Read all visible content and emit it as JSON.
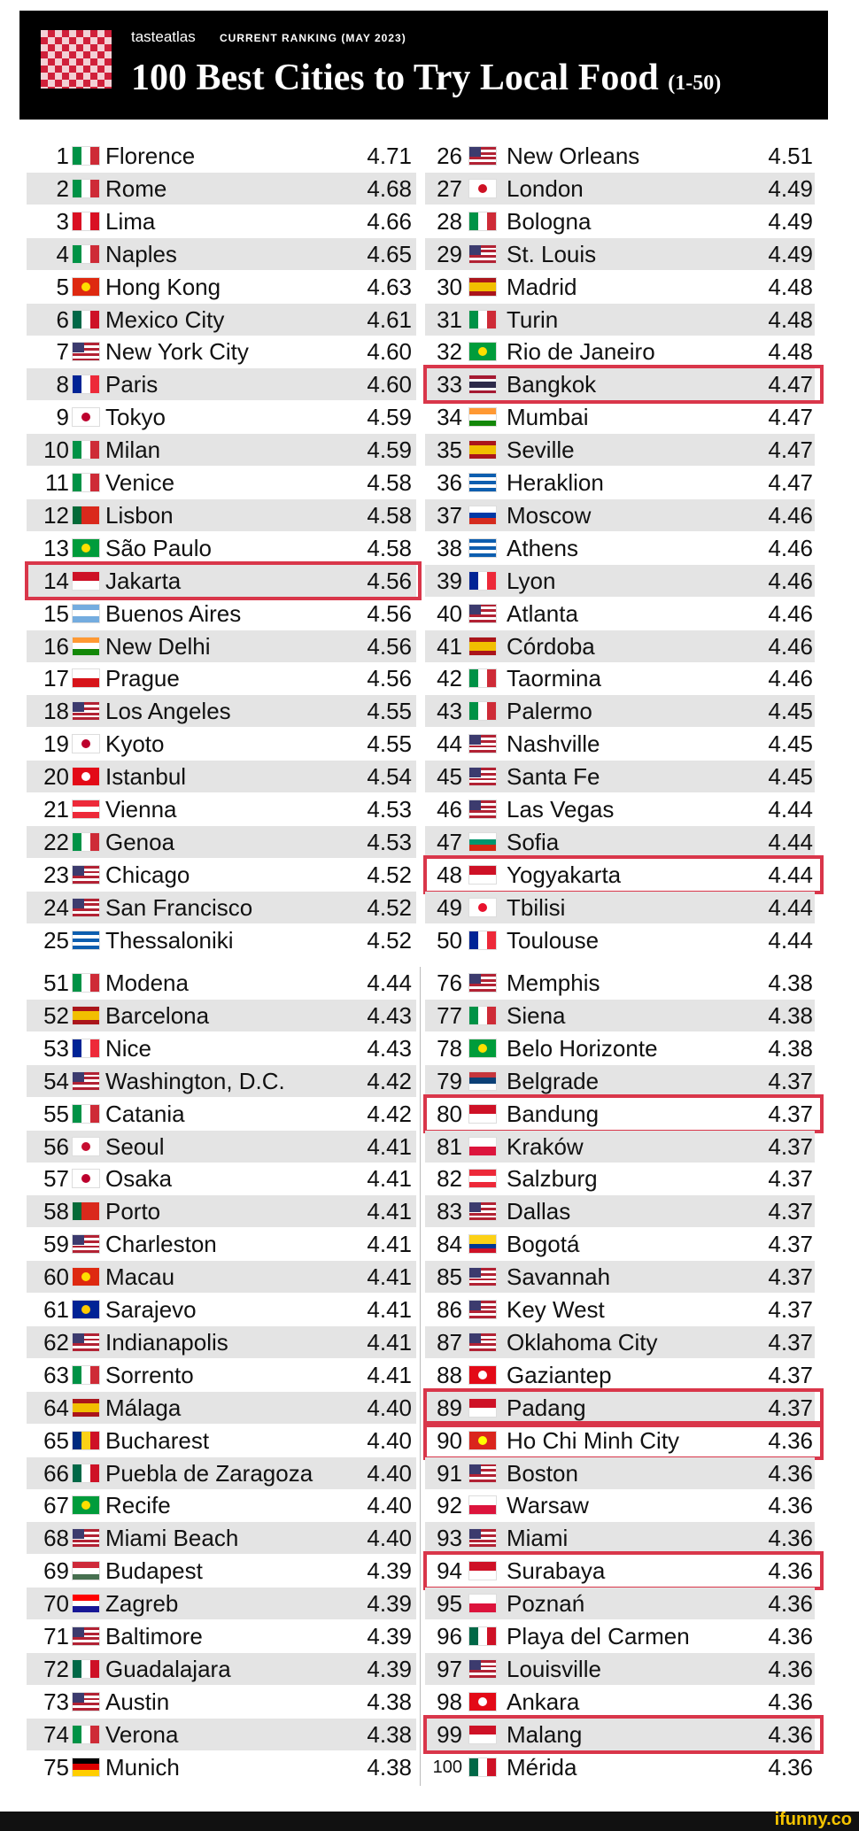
{
  "header": {
    "brand": "tasteatlas",
    "kicker": "CURRENT RANKING (MAY 2023)",
    "title": "100 Best Cities to Try Local Food",
    "title_note": "(1-50)"
  },
  "table": {
    "rows": [
      [
        1,
        "Florence",
        "4.71"
      ],
      [
        2,
        "Rome",
        "4.68"
      ],
      [
        3,
        "Lima",
        "4.66"
      ],
      [
        4,
        "Naples",
        "4.65"
      ],
      [
        5,
        "Hong Kong",
        "4.63"
      ],
      [
        6,
        "Mexico City",
        "4.61"
      ],
      [
        7,
        "New York City",
        "4.60"
      ],
      [
        8,
        "Paris",
        "4.60"
      ],
      [
        9,
        "Tokyo",
        "4.59"
      ],
      [
        10,
        "Milan",
        "4.59"
      ],
      [
        11,
        "Venice",
        "4.58"
      ],
      [
        12,
        "Lisbon",
        "4.58"
      ],
      [
        13,
        "São Paulo",
        "4.58"
      ],
      [
        14,
        "Jakarta",
        "4.56"
      ],
      [
        15,
        "Buenos Aires",
        "4.56"
      ],
      [
        16,
        "New Delhi",
        "4.56"
      ],
      [
        17,
        "Prague",
        "4.56"
      ],
      [
        18,
        "Los Angeles",
        "4.55"
      ],
      [
        19,
        "Kyoto",
        "4.55"
      ],
      [
        20,
        "Istanbul",
        "4.54"
      ],
      [
        21,
        "Vienna",
        "4.53"
      ],
      [
        22,
        "Genoa",
        "4.53"
      ],
      [
        23,
        "Chicago",
        "4.52"
      ],
      [
        24,
        "San Francisco",
        "4.52"
      ],
      [
        25,
        "Thessaloniki",
        "4.52"
      ],
      [
        26,
        "New Orleans",
        "4.51"
      ],
      [
        27,
        "London",
        "4.49"
      ],
      [
        28,
        "Bologna",
        "4.49"
      ],
      [
        29,
        "St. Louis",
        "4.49"
      ],
      [
        30,
        "Madrid",
        "4.48"
      ],
      [
        31,
        "Turin",
        "4.48"
      ],
      [
        32,
        "Rio de Janeiro",
        "4.48"
      ],
      [
        33,
        "Bangkok",
        "4.47"
      ],
      [
        34,
        "Mumbai",
        "4.47"
      ],
      [
        35,
        "Seville",
        "4.47"
      ],
      [
        36,
        "Heraklion",
        "4.47"
      ],
      [
        37,
        "Moscow",
        "4.46"
      ],
      [
        38,
        "Athens",
        "4.46"
      ],
      [
        39,
        "Lyon",
        "4.46"
      ],
      [
        40,
        "Atlanta",
        "4.46"
      ],
      [
        41,
        "Córdoba",
        "4.46"
      ],
      [
        42,
        "Taormina",
        "4.46"
      ],
      [
        43,
        "Palermo",
        "4.45"
      ],
      [
        44,
        "Nashville",
        "4.45"
      ],
      [
        45,
        "Santa Fe",
        "4.45"
      ],
      [
        46,
        "Las Vegas",
        "4.44"
      ],
      [
        47,
        "Sofia",
        "4.44"
      ],
      [
        48,
        "Yogyakarta",
        "4.44"
      ],
      [
        49,
        "Tbilisi",
        "4.44"
      ],
      [
        50,
        "Toulouse",
        "4.44"
      ],
      [
        51,
        "Modena",
        "4.44"
      ],
      [
        52,
        "Barcelona",
        "4.43"
      ],
      [
        53,
        "Nice",
        "4.43"
      ],
      [
        54,
        "Washington, D.C.",
        "4.42"
      ],
      [
        55,
        "Catania",
        "4.42"
      ],
      [
        56,
        "Seoul",
        "4.41"
      ],
      [
        57,
        "Osaka",
        "4.41"
      ],
      [
        58,
        "Porto",
        "4.41"
      ],
      [
        59,
        "Charleston",
        "4.41"
      ],
      [
        60,
        "Macau",
        "4.41"
      ],
      [
        61,
        "Sarajevo",
        "4.41"
      ],
      [
        62,
        "Indianapolis",
        "4.41"
      ],
      [
        63,
        "Sorrento",
        "4.41"
      ],
      [
        64,
        "Málaga",
        "4.40"
      ],
      [
        65,
        "Bucharest",
        "4.40"
      ],
      [
        66,
        "Puebla de Zaragoza",
        "4.40"
      ],
      [
        67,
        "Recife",
        "4.40"
      ],
      [
        68,
        "Miami Beach",
        "4.40"
      ],
      [
        69,
        "Budapest",
        "4.39"
      ],
      [
        70,
        "Zagreb",
        "4.39"
      ],
      [
        71,
        "Baltimore",
        "4.39"
      ],
      [
        72,
        "Guadalajara",
        "4.39"
      ],
      [
        73,
        "Austin",
        "4.38"
      ],
      [
        74,
        "Verona",
        "4.38"
      ],
      [
        75,
        "Munich",
        "4.38"
      ],
      [
        76,
        "Memphis",
        "4.38"
      ],
      [
        77,
        "Siena",
        "4.38"
      ],
      [
        78,
        "Belo Horizonte",
        "4.38"
      ],
      [
        79,
        "Belgrade",
        "4.37"
      ],
      [
        80,
        "Bandung",
        "4.37"
      ],
      [
        81,
        "Kraków",
        "4.37"
      ],
      [
        82,
        "Salzburg",
        "4.37"
      ],
      [
        83,
        "Dallas",
        "4.37"
      ],
      [
        84,
        "Bogotá",
        "4.37"
      ],
      [
        85,
        "Savannah",
        "4.37"
      ],
      [
        86,
        "Key West",
        "4.37"
      ],
      [
        87,
        "Oklahoma City",
        "4.37"
      ],
      [
        88,
        "Gaziantep",
        "4.37"
      ],
      [
        89,
        "Padang",
        "4.37"
      ],
      [
        90,
        "Ho Chi Minh City",
        "4.36"
      ],
      [
        91,
        "Boston",
        "4.36"
      ],
      [
        92,
        "Warsaw",
        "4.36"
      ],
      [
        93,
        "Miami",
        "4.36"
      ],
      [
        94,
        "Surabaya",
        "4.36"
      ],
      [
        95,
        "Poznań",
        "4.36"
      ],
      [
        96,
        "Playa del Carmen",
        "4.36"
      ],
      [
        97,
        "Louisville",
        "4.36"
      ],
      [
        98,
        "Ankara",
        "4.36"
      ],
      [
        99,
        "Malang",
        "4.36"
      ],
      [
        100,
        "Mérida",
        "4.36"
      ]
    ]
  },
  "footer": {
    "watermark": "ifunny.co"
  }
}
